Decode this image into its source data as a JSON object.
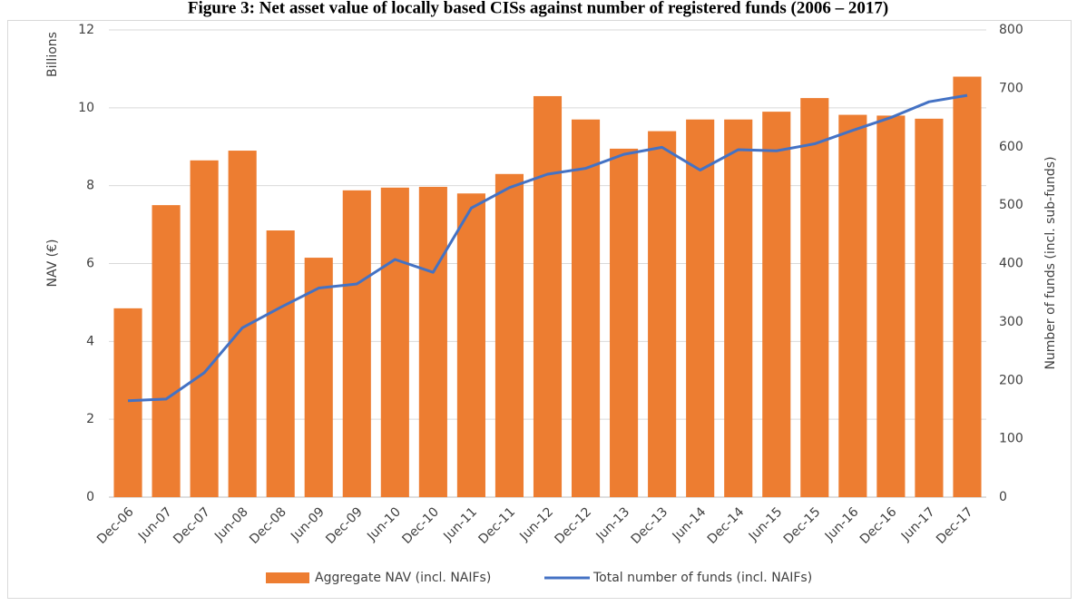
{
  "chart_data": {
    "type": "bar",
    "title": "Figure 3: Net asset value of locally based CISs against number of registered funds (2006 – 2017)",
    "ylabel_unit": "Billions",
    "ylabel": "NAV (€)",
    "y2label": "Number of funds (incl. sub-funds)",
    "categories": [
      "Dec-06",
      "Jun-07",
      "Dec-07",
      "Jun-08",
      "Dec-08",
      "Jun-09",
      "Dec-09",
      "Jun-10",
      "Dec-10",
      "Jun-11",
      "Dec-11",
      "Jun-12",
      "Dec-12",
      "Jun-13",
      "Dec-13",
      "Jun-14",
      "Dec-14",
      "Jun-15",
      "Dec-15",
      "Jun-16",
      "Dec-16",
      "Jun-17",
      "Dec-17"
    ],
    "series": [
      {
        "name": "Aggregate NAV (incl. NAIFs)",
        "type": "bar",
        "color": "#ed7d31",
        "values": [
          4.85,
          7.5,
          8.65,
          8.9,
          6.85,
          6.15,
          7.88,
          7.95,
          7.97,
          7.8,
          8.3,
          10.3,
          9.7,
          8.95,
          9.4,
          9.7,
          9.7,
          9.9,
          10.25,
          9.82,
          9.8,
          9.72,
          10.8
        ]
      },
      {
        "name": "Total number of funds (incl. NAIFs)",
        "type": "line",
        "axis": "y2",
        "color": "#4472c4",
        "values": [
          165,
          168,
          213,
          290,
          325,
          358,
          365,
          407,
          385,
          495,
          530,
          553,
          563,
          587,
          599,
          560,
          595,
          593,
          605,
          628,
          650,
          677,
          688
        ]
      }
    ],
    "ylim": [
      0,
      12
    ],
    "yticks": [
      0,
      2,
      4,
      6,
      8,
      10,
      12
    ],
    "y2lim": [
      0,
      800
    ],
    "y2ticks": [
      0,
      100,
      200,
      300,
      400,
      500,
      600,
      700,
      800
    ],
    "grid": true,
    "legend": "bottom"
  }
}
